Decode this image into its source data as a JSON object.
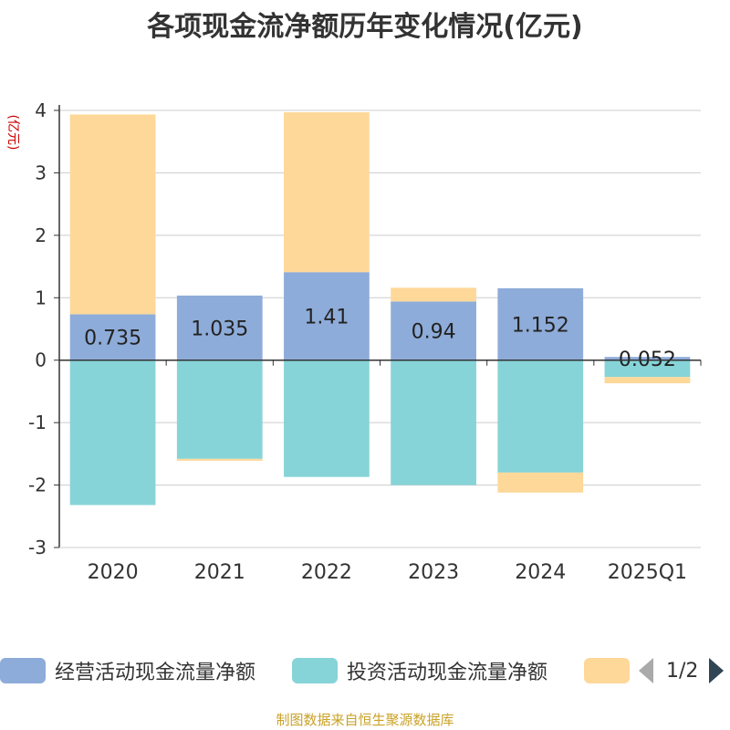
{
  "chart_data": {
    "type": "bar",
    "stacked": true,
    "title": "各项现金流净额历年变化情况(亿元)",
    "ylabel": "(亿元)",
    "xlabel": "",
    "ylim": [
      -3,
      4
    ],
    "yticks": [
      -3,
      -2,
      -1,
      0,
      1,
      2,
      3,
      4
    ],
    "categories": [
      "2020",
      "2021",
      "2022",
      "2023",
      "2024",
      "2025Q1"
    ],
    "series": [
      {
        "name": "经营活动现金流量净额",
        "color": "#8eacd9",
        "values": [
          0.735,
          1.035,
          1.41,
          0.94,
          1.152,
          0.052
        ],
        "labels": [
          "0.735",
          "1.035",
          "1.41",
          "0.94",
          "1.152",
          "0.052"
        ]
      },
      {
        "name": "投资活动现金流量净额",
        "color": "#86d4d8",
        "values": [
          -2.32,
          -1.58,
          -1.87,
          -2.0,
          -1.8,
          -0.27
        ]
      },
      {
        "name": "",
        "color": "#fed899",
        "values": [
          3.2,
          -0.03,
          2.56,
          0.22,
          -0.32,
          -0.1
        ]
      }
    ],
    "legend_position": "bottom",
    "grid": true
  },
  "legend": {
    "items": [
      {
        "label": "经营活动现金流量净额",
        "color": "#8eacd9"
      },
      {
        "label": "投资活动现金流量净额",
        "color": "#86d4d8"
      },
      {
        "label": "",
        "color": "#fed899"
      }
    ],
    "page_text": "1/2"
  },
  "footer": {
    "source": "制图数据来自恒生聚源数据库"
  }
}
